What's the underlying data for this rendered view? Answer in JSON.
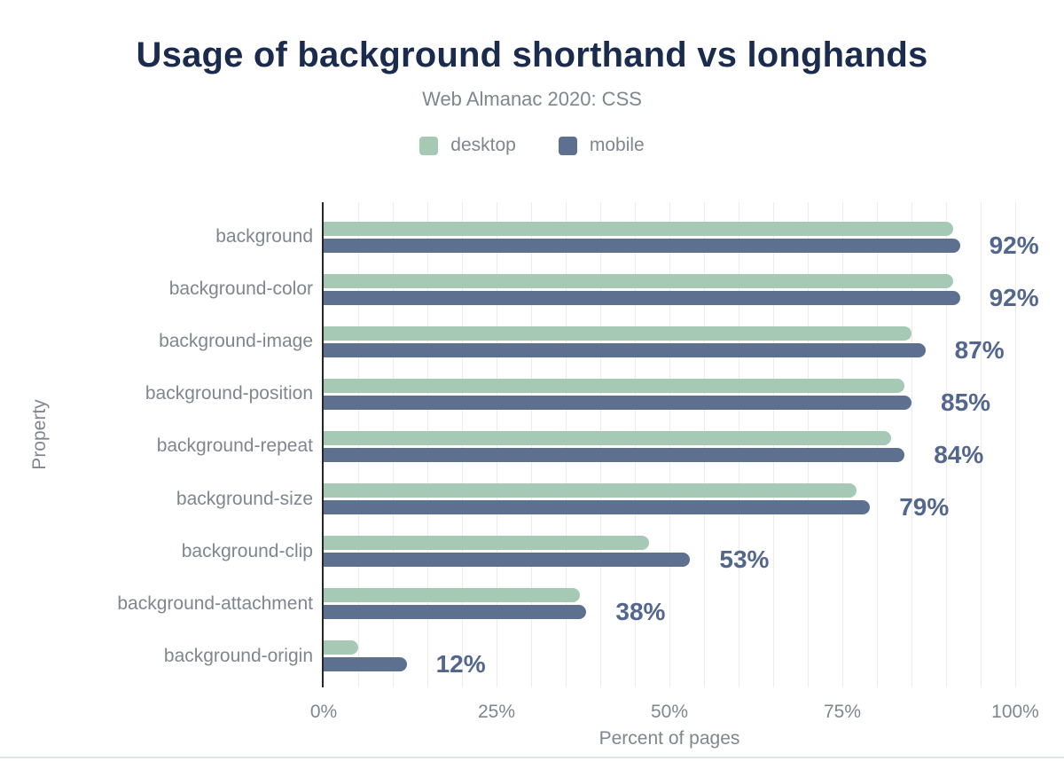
{
  "chart_data": {
    "type": "bar",
    "orientation": "horizontal",
    "title": "Usage of background shorthand vs longhands",
    "subtitle": "Web Almanac 2020: CSS",
    "categories": [
      "background",
      "background-color",
      "background-image",
      "background-position",
      "background-repeat",
      "background-size",
      "background-clip",
      "background-attachment",
      "background-origin"
    ],
    "series": [
      {
        "name": "desktop",
        "color": "#a6c9b6",
        "values": [
          91,
          91,
          85,
          84,
          82,
          77,
          47,
          37,
          5
        ]
      },
      {
        "name": "mobile",
        "color": "#5d7090",
        "values": [
          92,
          92,
          87,
          85,
          84,
          79,
          53,
          38,
          12
        ]
      }
    ],
    "value_labels": [
      "92%",
      "92%",
      "87%",
      "85%",
      "84%",
      "79%",
      "53%",
      "38%",
      "12%"
    ],
    "value_labels_source": "mobile",
    "xlabel": "Percent of pages",
    "ylabel": "Property",
    "xlim": [
      0,
      100
    ],
    "x_ticks": [
      0,
      25,
      50,
      75,
      100
    ],
    "x_tick_labels": [
      "0%",
      "25%",
      "50%",
      "75%",
      "100%"
    ],
    "minor_grid_step_percent": 5,
    "grid": true,
    "legend_position": "top"
  },
  "colors": {
    "title": "#1a2b4d",
    "secondary_text": "#80868f",
    "desktop_bar": "#a6c9b6",
    "mobile_bar": "#5d7090",
    "value_label": "#53678e",
    "gridline": "#ececec",
    "axis_line": "#262626",
    "bottom_border": "#e0e4e9"
  }
}
